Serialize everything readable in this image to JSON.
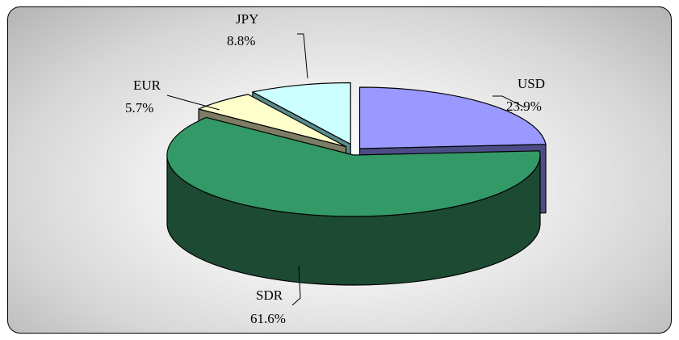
{
  "chart_data": {
    "type": "pie",
    "style": "3d-exploded",
    "categories": [
      "USD",
      "SDR",
      "EUR",
      "JPY"
    ],
    "values": [
      23.9,
      61.6,
      5.7,
      8.8
    ],
    "labels": [
      {
        "name": "USD",
        "pct": "23.9%"
      },
      {
        "name": "SDR",
        "pct": "61.6%"
      },
      {
        "name": "EUR",
        "pct": "5.7%"
      },
      {
        "name": "JPY",
        "pct": "8.8%"
      }
    ],
    "colors": [
      "#9999ff",
      "#339966",
      "#ffffcc",
      "#ccffff"
    ],
    "side_colors": [
      "#4d4d86",
      "#1d4a33",
      "#7d7d66",
      "#5b8a8a"
    ],
    "legend": "none"
  }
}
